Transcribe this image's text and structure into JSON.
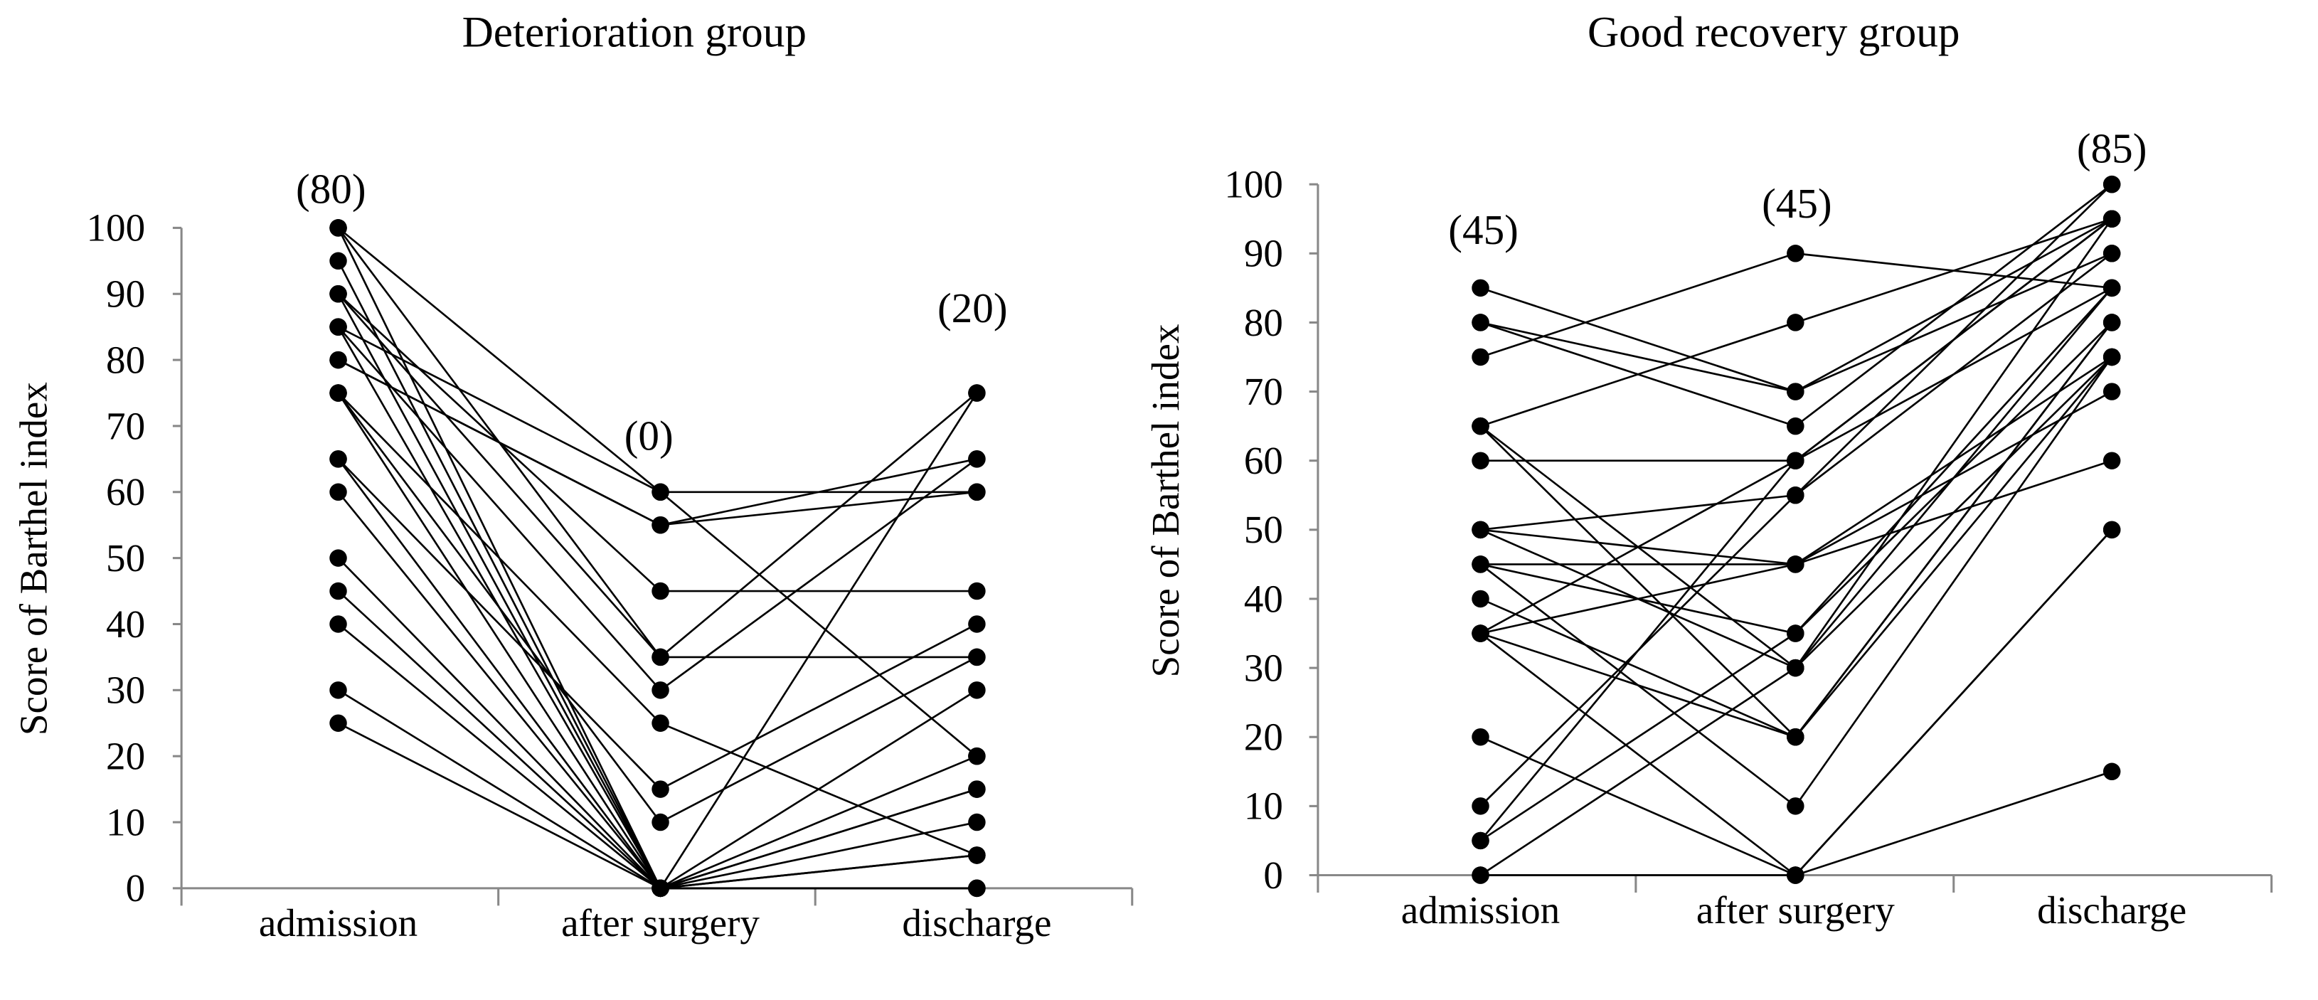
{
  "chart_data": [
    {
      "type": "line",
      "title": "Deterioration group",
      "xlabel": "",
      "ylabel": "Score of Barthel index",
      "categories": [
        "admission",
        "after surgery",
        "discharge"
      ],
      "ylim": [
        0,
        100
      ],
      "yticks": [
        0,
        10,
        20,
        30,
        40,
        50,
        60,
        70,
        80,
        90,
        100
      ],
      "medians": [
        "(80)",
        "(0)",
        "(20)"
      ],
      "grid": false,
      "series": [
        [
          100,
          60,
          60
        ],
        [
          100,
          35,
          75
        ],
        [
          100,
          0,
          5
        ],
        [
          95,
          0,
          0
        ],
        [
          90,
          45,
          45
        ],
        [
          90,
          0,
          15
        ],
        [
          90,
          35,
          35
        ],
        [
          85,
          0,
          10
        ],
        [
          85,
          30,
          65
        ],
        [
          80,
          55,
          65
        ],
        [
          80,
          55,
          60
        ],
        [
          75,
          25,
          5
        ],
        [
          75,
          0,
          30
        ],
        [
          75,
          10,
          35
        ],
        [
          65,
          15,
          40
        ],
        [
          65,
          0,
          20
        ],
        [
          60,
          0,
          0
        ],
        [
          50,
          0,
          75
        ],
        [
          45,
          0,
          15
        ],
        [
          40,
          0,
          5
        ],
        [
          30,
          0,
          0
        ],
        [
          25,
          0,
          0
        ],
        [
          85,
          60,
          20
        ]
      ]
    },
    {
      "type": "line",
      "title": "Good recovery group",
      "xlabel": "",
      "ylabel": "Score of Barthel index",
      "categories": [
        "admission",
        "after surgery",
        "discharge"
      ],
      "ylim": [
        0,
        100
      ],
      "yticks": [
        0,
        10,
        20,
        30,
        40,
        50,
        60,
        70,
        80,
        90,
        100
      ],
      "medians": [
        "(45)",
        "(45)",
        "(85)"
      ],
      "grid": false,
      "series": [
        [
          85,
          70,
          95
        ],
        [
          80,
          70,
          90
        ],
        [
          80,
          65,
          100
        ],
        [
          75,
          90,
          85
        ],
        [
          65,
          80,
          95
        ],
        [
          65,
          20,
          80
        ],
        [
          65,
          30,
          85
        ],
        [
          60,
          60,
          95
        ],
        [
          50,
          55,
          100
        ],
        [
          50,
          45,
          60
        ],
        [
          50,
          30,
          75
        ],
        [
          45,
          45,
          70
        ],
        [
          45,
          35,
          85
        ],
        [
          45,
          10,
          75
        ],
        [
          40,
          20,
          80
        ],
        [
          35,
          60,
          95
        ],
        [
          35,
          0,
          50
        ],
        [
          35,
          45,
          75
        ],
        [
          20,
          0,
          15
        ],
        [
          10,
          55,
          90
        ],
        [
          5,
          60,
          85
        ],
        [
          5,
          35,
          80
        ],
        [
          0,
          0,
          50
        ],
        [
          0,
          30,
          95
        ],
        [
          35,
          20,
          75
        ]
      ]
    }
  ]
}
